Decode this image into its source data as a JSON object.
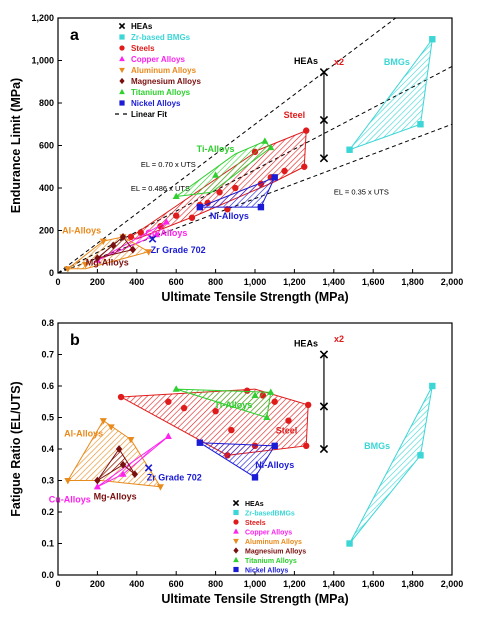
{
  "figure": {
    "colors": {
      "heas": "#000000",
      "bmgs": "#3dd6d6",
      "steels": "#e01b1b",
      "copper": "#ff22ee",
      "aluminum": "#e88a1c",
      "magnesium": "#7a0f0f",
      "titanium": "#2ecf2e",
      "nickel": "#1b1bd6",
      "fit": "#000000"
    }
  },
  "chart_data": [
    {
      "panel": "a",
      "type": "scatter",
      "xlabel": "Ultimate Tensile Strength (MPa)",
      "ylabel": "Endurance Limit (MPa)",
      "xlim": [
        0,
        2000
      ],
      "ylim": [
        0,
        1200
      ],
      "xticks": [
        "0",
        "200",
        "400",
        "600",
        "800",
        "1,000",
        "1,200",
        "1,400",
        "1,600",
        "1,800",
        "2,000"
      ],
      "yticks": [
        "0",
        "200",
        "400",
        "600",
        "800",
        "1,000",
        "1,200"
      ],
      "grid": false,
      "legend": "top-left",
      "legend_entries": [
        {
          "label": "HEAs",
          "marker": "x",
          "color": "heas"
        },
        {
          "label": "Zr-based BMGs",
          "marker": "square",
          "color": "bmgs"
        },
        {
          "label": "Steels",
          "marker": "circle",
          "color": "steels"
        },
        {
          "label": "Copper Alloys",
          "marker": "triangle-up",
          "color": "copper"
        },
        {
          "label": "Aluminum Alloys",
          "marker": "triangle-down",
          "color": "aluminum"
        },
        {
          "label": "Magnesium Alloys",
          "marker": "diamond",
          "color": "magnesium"
        },
        {
          "label": "Titanium Alloys",
          "marker": "triangle-up",
          "color": "titanium"
        },
        {
          "label": "Nickel Alloys",
          "marker": "square",
          "color": "nickel"
        },
        {
          "label": "Linear Fit",
          "marker": "dash",
          "color": "fit"
        }
      ],
      "heas": {
        "label": "HEAs",
        "x": 1350,
        "y_values": [
          540,
          720,
          945
        ],
        "annotation": "x2"
      },
      "lines": [
        {
          "label": "EL = 0.70 x UTS",
          "slope": 0.7,
          "label_at": [
            560,
            500
          ]
        },
        {
          "label": "EL = 0.486 x UTS",
          "slope": 0.486,
          "label_at": [
            520,
            385
          ]
        },
        {
          "label": "EL = 0.35 x UTS",
          "slope": 0.35,
          "label_at": [
            1540,
            370
          ]
        }
      ],
      "series": [
        {
          "name": "BMGs",
          "color": "bmgs",
          "marker": "square",
          "region": [
            [
              1480,
              580
            ],
            [
              1900,
              1100
            ],
            [
              1840,
              700
            ]
          ],
          "points": [
            [
              1480,
              580
            ],
            [
              1900,
              1100
            ],
            [
              1840,
              700
            ]
          ],
          "label": "BMGs",
          "label_at": [
            1720,
            980
          ]
        },
        {
          "name": "Steel",
          "color": "steels",
          "marker": "circle",
          "region": [
            [
              370,
              170
            ],
            [
              1020,
              580
            ],
            [
              1260,
              670
            ],
            [
              1250,
              500
            ],
            [
              1100,
              430
            ],
            [
              700,
              270
            ],
            [
              400,
              160
            ]
          ],
          "points": [
            [
              370,
              170
            ],
            [
              420,
              190
            ],
            [
              520,
              220
            ],
            [
              600,
              270
            ],
            [
              680,
              260
            ],
            [
              720,
              320
            ],
            [
              760,
              330
            ],
            [
              820,
              380
            ],
            [
              860,
              300
            ],
            [
              900,
              400
            ],
            [
              1000,
              570
            ],
            [
              1030,
              420
            ],
            [
              1080,
              450
            ],
            [
              1150,
              480
            ],
            [
              1250,
              500
            ],
            [
              1260,
              670
            ]
          ],
          "label": "Steel",
          "label_at": [
            1200,
            730
          ]
        },
        {
          "name": "Ti-Alloys",
          "color": "titanium",
          "marker": "triangle-up",
          "region": [
            [
              600,
              360
            ],
            [
              900,
              560
            ],
            [
              1050,
              620
            ],
            [
              1080,
              590
            ],
            [
              780,
              380
            ]
          ],
          "points": [
            [
              600,
              360
            ],
            [
              800,
              460
            ],
            [
              1050,
              620
            ],
            [
              1080,
              590
            ]
          ],
          "label": "Ti-Alloys",
          "label_at": [
            800,
            570
          ]
        },
        {
          "name": "Ni-Alloys",
          "color": "nickel",
          "marker": "square",
          "region": [
            [
              720,
              310
            ],
            [
              1030,
              310
            ],
            [
              1100,
              450
            ]
          ],
          "points": [
            [
              720,
              310
            ],
            [
              1030,
              310
            ],
            [
              1100,
              450
            ]
          ],
          "label": "Ni-Alloys",
          "label_at": [
            870,
            255
          ]
        },
        {
          "name": "Cu-Alloys",
          "color": "copper",
          "marker": "triangle-up",
          "region": [
            [
              200,
              60
            ],
            [
              550,
              240
            ],
            [
              500,
              180
            ]
          ],
          "points": [
            [
              200,
              60
            ],
            [
              550,
              240
            ],
            [
              500,
              180
            ]
          ],
          "label": "Cu-Alloys",
          "label_at": [
            550,
            175
          ]
        },
        {
          "name": "Al-Alloys",
          "color": "aluminum",
          "marker": "triangle-down",
          "region": [
            [
              50,
              20
            ],
            [
              230,
              150
            ],
            [
              330,
              170
            ],
            [
              460,
              100
            ],
            [
              140,
              20
            ]
          ],
          "points": [
            [
              50,
              20
            ],
            [
              140,
              40
            ],
            [
              230,
              150
            ],
            [
              330,
              170
            ],
            [
              460,
              100
            ]
          ],
          "label": "Al-Alloys",
          "label_at": [
            120,
            185
          ]
        },
        {
          "name": "Mg-Alloys",
          "color": "magnesium",
          "marker": "diamond",
          "region": [
            [
              200,
              70
            ],
            [
              330,
              170
            ],
            [
              380,
              110
            ]
          ],
          "points": [
            [
              200,
              70
            ],
            [
              280,
              130
            ],
            [
              330,
              170
            ],
            [
              380,
              110
            ]
          ],
          "label": "Mg-Alloys",
          "label_at": [
            250,
            35
          ]
        },
        {
          "name": "Zr Grade 702",
          "color": "nickel",
          "marker": "x",
          "region": [],
          "points": [
            [
              480,
              160
            ]
          ],
          "label": "Zr Grade 702",
          "label_at": [
            610,
            95
          ]
        }
      ]
    },
    {
      "panel": "b",
      "type": "scatter",
      "xlabel": "Ultimate Tensile Strength (MPa)",
      "ylabel": "Fatigue Ratio (EL/UTS)",
      "xlim": [
        0,
        2000
      ],
      "ylim": [
        0,
        0.8
      ],
      "xticks": [
        "0",
        "200",
        "400",
        "600",
        "800",
        "1,000",
        "1,200",
        "1,400",
        "1,600",
        "1,800",
        "2,000"
      ],
      "yticks": [
        "0.0",
        "0.1",
        "0.2",
        "0.3",
        "0.4",
        "0.5",
        "0.6",
        "0.7",
        "0.8"
      ],
      "grid": false,
      "legend": "bottom-center",
      "legend_entries": [
        {
          "label": "HEAs",
          "marker": "x",
          "color": "heas"
        },
        {
          "label": "Zr-basedBMGs",
          "marker": "square",
          "color": "bmgs"
        },
        {
          "label": "Steels",
          "marker": "circle",
          "color": "steels"
        },
        {
          "label": "Copper Alloys",
          "marker": "triangle-up",
          "color": "copper"
        },
        {
          "label": "Aluminum Alloys",
          "marker": "triangle-down",
          "color": "aluminum"
        },
        {
          "label": "Magnesium Alloys",
          "marker": "diamond",
          "color": "magnesium"
        },
        {
          "label": "Titanium Alloys",
          "marker": "triangle-up",
          "color": "titanium"
        },
        {
          "label": "Nickel Alloys",
          "marker": "square",
          "color": "nickel"
        }
      ],
      "heas": {
        "label": "HEAs",
        "x": 1350,
        "y_values": [
          0.4,
          0.535,
          0.7
        ],
        "annotation": "x2"
      },
      "lines": [],
      "series": [
        {
          "name": "BMGs",
          "color": "bmgs",
          "marker": "square",
          "region": [
            [
              1480,
              0.1
            ],
            [
              1900,
              0.6
            ],
            [
              1840,
              0.38
            ]
          ],
          "points": [
            [
              1480,
              0.1
            ],
            [
              1900,
              0.6
            ],
            [
              1840,
              0.38
            ]
          ],
          "label": "BMGs",
          "label_at": [
            1620,
            0.4
          ]
        },
        {
          "name": "Steel",
          "color": "steels",
          "marker": "circle",
          "region": [
            [
              320,
              0.565
            ],
            [
              1000,
              0.59
            ],
            [
              1270,
              0.54
            ],
            [
              1260,
              0.41
            ],
            [
              860,
              0.38
            ]
          ],
          "points": [
            [
              320,
              0.565
            ],
            [
              560,
              0.55
            ],
            [
              640,
              0.53
            ],
            [
              800,
              0.52
            ],
            [
              860,
              0.38
            ],
            [
              880,
              0.46
            ],
            [
              960,
              0.585
            ],
            [
              1000,
              0.41
            ],
            [
              1040,
              0.57
            ],
            [
              1100,
              0.55
            ],
            [
              1170,
              0.49
            ],
            [
              1260,
              0.41
            ],
            [
              1270,
              0.54
            ]
          ],
          "label": "Steel",
          "label_at": [
            1160,
            0.45
          ]
        },
        {
          "name": "Ti-Alloys",
          "color": "titanium",
          "marker": "triangle-up",
          "region": [
            [
              600,
              0.59
            ],
            [
              1080,
              0.58
            ],
            [
              1060,
              0.5
            ]
          ],
          "points": [
            [
              600,
              0.59
            ],
            [
              1000,
              0.57
            ],
            [
              1080,
              0.58
            ],
            [
              1060,
              0.5
            ]
          ],
          "label": "Ti-Alloys",
          "label_at": [
            890,
            0.53
          ]
        },
        {
          "name": "Ni-Alloys",
          "color": "nickel",
          "marker": "square",
          "region": [
            [
              720,
              0.42
            ],
            [
              1100,
              0.41
            ],
            [
              1000,
              0.31
            ]
          ],
          "points": [
            [
              720,
              0.42
            ],
            [
              1100,
              0.41
            ],
            [
              1000,
              0.31
            ]
          ],
          "label": "Ni-Alloys",
          "label_at": [
            1100,
            0.34
          ]
        },
        {
          "name": "Al-Alloys",
          "color": "aluminum",
          "marker": "triangle-down",
          "region": [
            [
              50,
              0.3
            ],
            [
              230,
              0.49
            ],
            [
              370,
              0.43
            ],
            [
              520,
              0.28
            ],
            [
              220,
              0.3
            ]
          ],
          "points": [
            [
              50,
              0.3
            ],
            [
              230,
              0.49
            ],
            [
              270,
              0.47
            ],
            [
              370,
              0.43
            ],
            [
              520,
              0.28
            ]
          ],
          "label": "Al-Alloys",
          "label_at": [
            130,
            0.44
          ]
        },
        {
          "name": "Cu-Alloys",
          "color": "copper",
          "marker": "triangle-up",
          "region": [
            [
              200,
              0.28
            ],
            [
              560,
              0.44
            ],
            [
              330,
              0.32
            ]
          ],
          "points": [
            [
              200,
              0.28
            ],
            [
              560,
              0.44
            ],
            [
              330,
              0.32
            ]
          ],
          "label": "Cu-Alloys",
          "label_at": [
            60,
            0.23
          ]
        },
        {
          "name": "Mg-Alloys",
          "color": "magnesium",
          "marker": "diamond",
          "region": [
            [
              200,
              0.3
            ],
            [
              310,
              0.4
            ],
            [
              390,
              0.32
            ],
            [
              330,
              0.35
            ]
          ],
          "points": [
            [
              200,
              0.3
            ],
            [
              310,
              0.4
            ],
            [
              330,
              0.35
            ],
            [
              390,
              0.32
            ]
          ],
          "label": "Mg-Alloys",
          "label_at": [
            290,
            0.24
          ]
        },
        {
          "name": "Zr Grade 702",
          "color": "nickel",
          "marker": "x",
          "region": [],
          "points": [
            [
              460,
              0.34
            ]
          ],
          "label": "Zr Grade 702",
          "label_at": [
            590,
            0.3
          ]
        }
      ]
    }
  ]
}
